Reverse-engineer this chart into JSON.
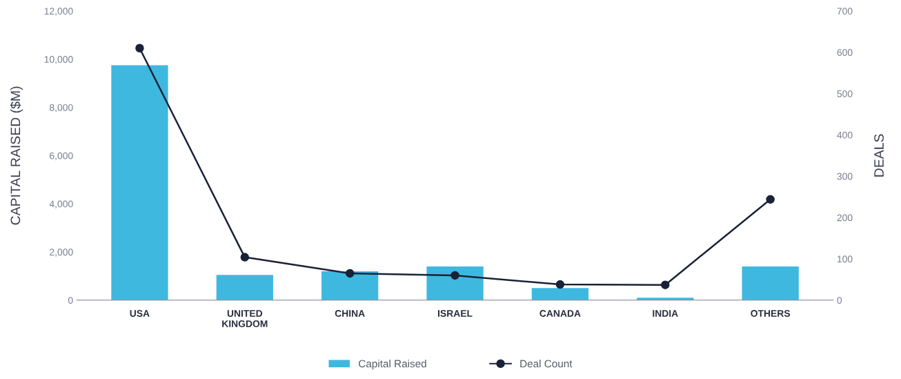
{
  "chart_data": {
    "type": "bar",
    "categories": [
      "USA",
      "UNITED\nKINGDOM",
      "CHINA",
      "ISRAEL",
      "CANADA",
      "INDIA",
      "OTHERS"
    ],
    "ylabel": "CAPITAL RAISED ($M)",
    "y2label": "DEALS",
    "series": [
      {
        "name": "Capital Raised",
        "color": "#3fb8e0",
        "values": [
          9750,
          1050,
          1200,
          1400,
          500,
          100,
          1400
        ]
      },
      {
        "name": "Deal Count",
        "type": "line",
        "axis": "y2",
        "color": "#1a2238",
        "marker": "circle",
        "values": [
          610,
          104,
          65,
          60,
          38,
          37,
          244
        ]
      }
    ],
    "ylim": [
      0,
      12000
    ],
    "yticks": [
      {
        "value": 0,
        "label": "0"
      },
      {
        "value": 2000,
        "label": "2,000"
      },
      {
        "value": 4000,
        "label": "4,000"
      },
      {
        "value": 6000,
        "label": "6,000"
      },
      {
        "value": 8000,
        "label": "8,000"
      },
      {
        "value": 10000,
        "label": "10,000"
      },
      {
        "value": 12000,
        "label": "12,000"
      }
    ],
    "y2lim": [
      0,
      700
    ],
    "y2ticks": [
      0,
      100,
      200,
      300,
      400,
      500,
      600,
      700
    ],
    "grid": false,
    "legend": "bottom"
  }
}
